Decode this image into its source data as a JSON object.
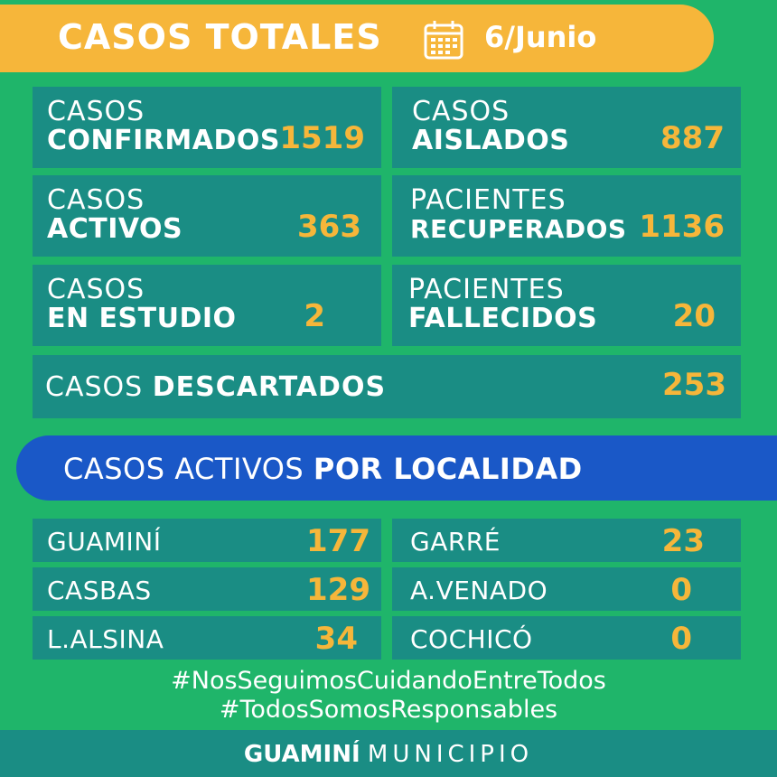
{
  "header": {
    "title": "CASOS TOTALES",
    "date": "6/Junio",
    "icon": "calendar-icon"
  },
  "stats": {
    "confirmados": {
      "line1": "CASOS",
      "line2": "CONFIRMADOS",
      "value": "1519"
    },
    "aislados": {
      "line1": "CASOS",
      "line2": "AISLADOS",
      "value": "887"
    },
    "activos": {
      "line1": "CASOS",
      "line2": "ACTIVOS",
      "value": "363"
    },
    "recuperados": {
      "line1": "PACIENTES",
      "line2": "RECUPERADOS",
      "value": "1136"
    },
    "en_estudio": {
      "line1": "CASOS",
      "line2": "EN ESTUDIO",
      "value": "2"
    },
    "fallecidos": {
      "line1": "PACIENTES",
      "line2": "FALLECIDOS",
      "value": "20"
    },
    "descartados": {
      "prefix": "CASOS",
      "label": "DESCARTADOS",
      "value": "253"
    }
  },
  "localidad": {
    "title_prefix": "CASOS ACTIVOS",
    "title_bold": "POR LOCALIDAD",
    "left": [
      {
        "name": "GUAMINÍ",
        "value": "177"
      },
      {
        "name": "CASBAS",
        "value": "129"
      },
      {
        "name": "L.ALSINA",
        "value": "34"
      }
    ],
    "right": [
      {
        "name": "GARRÉ",
        "value": "23"
      },
      {
        "name": "A.VENADO",
        "value": "0"
      },
      {
        "name": "COCHICÓ",
        "value": "0"
      }
    ]
  },
  "hashtags": [
    "#NosSeguimosCuidandoEntreTodos",
    "#TodosSomosResponsables"
  ],
  "footer": {
    "brand_bold": "GUAMINÍ",
    "brand_light": "MUNICIPIO"
  },
  "colors": {
    "background": "#1fb56a",
    "panel": "#1a8d84",
    "accent": "#f6b63a",
    "blue": "#1a58c7"
  }
}
